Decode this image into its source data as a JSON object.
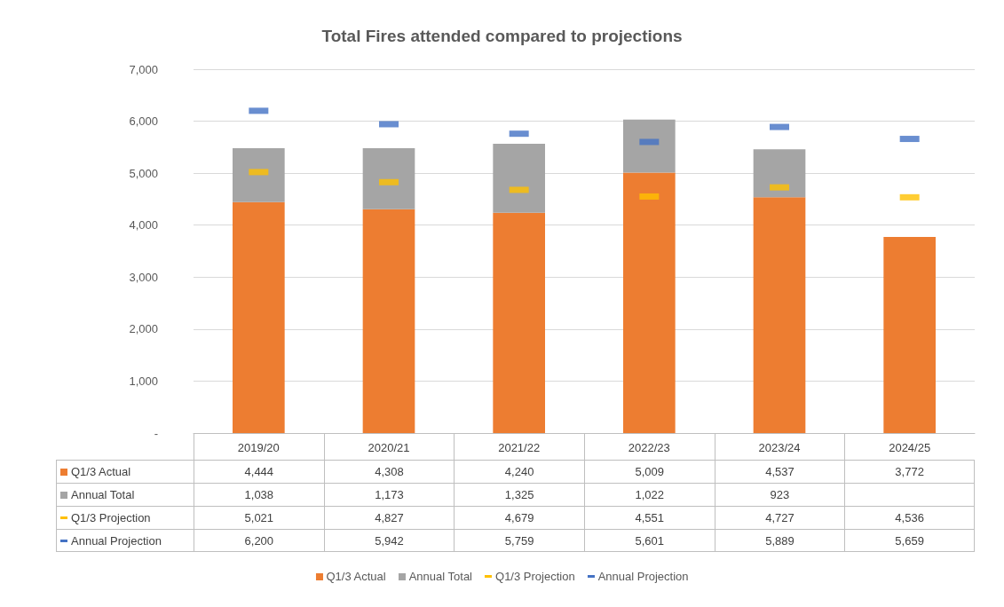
{
  "chart_data": {
    "type": "bar",
    "title": "Total Fires attended compared to projections",
    "categories": [
      "2019/20",
      "2020/21",
      "2021/22",
      "2022/23",
      "2023/24",
      "2024/25"
    ],
    "stacked": true,
    "series": [
      {
        "name": "Q1/3 Actual",
        "color": "#ed7d31",
        "values": [
          4444,
          4308,
          4240,
          5009,
          4537,
          3772
        ],
        "value_labels": [
          "4,444",
          "4,308",
          "4,240",
          "5,009",
          "4,537",
          "3,772"
        ]
      },
      {
        "name": "Annual Total",
        "color": "#a5a5a5",
        "values": [
          1038,
          1173,
          1325,
          1022,
          923,
          null
        ],
        "value_labels": [
          "1,038",
          "1,173",
          "1,325",
          "1,022",
          "923",
          null
        ]
      },
      {
        "name": "Q1/3 Projection",
        "type": "scatter",
        "color": "#ffc000",
        "values": [
          5021,
          4827,
          4679,
          4551,
          4727,
          4536
        ],
        "value_labels": [
          "5,021",
          "4,827",
          "4,679",
          "4,551",
          "4,727",
          "4,536"
        ]
      },
      {
        "name": "Annual Projection",
        "type": "scatter",
        "color": "#4472c4",
        "values": [
          6200,
          5942,
          5759,
          5601,
          5889,
          5659
        ],
        "value_labels": [
          "6,200",
          "5,942",
          "5,759",
          "5,601",
          "5,889",
          "5,659"
        ]
      }
    ],
    "ylim": [
      0,
      7000
    ],
    "yticks": [
      {
        "value": 0,
        "label": "-"
      },
      {
        "value": 1000,
        "label": "1,000"
      },
      {
        "value": 2000,
        "label": "2,000"
      },
      {
        "value": 3000,
        "label": "3,000"
      },
      {
        "value": 4000,
        "label": "4,000"
      },
      {
        "value": 5000,
        "label": "5,000"
      },
      {
        "value": 6000,
        "label": "6,000"
      },
      {
        "value": 7000,
        "label": "7,000"
      }
    ],
    "grid": "y",
    "legend": "bottom"
  }
}
